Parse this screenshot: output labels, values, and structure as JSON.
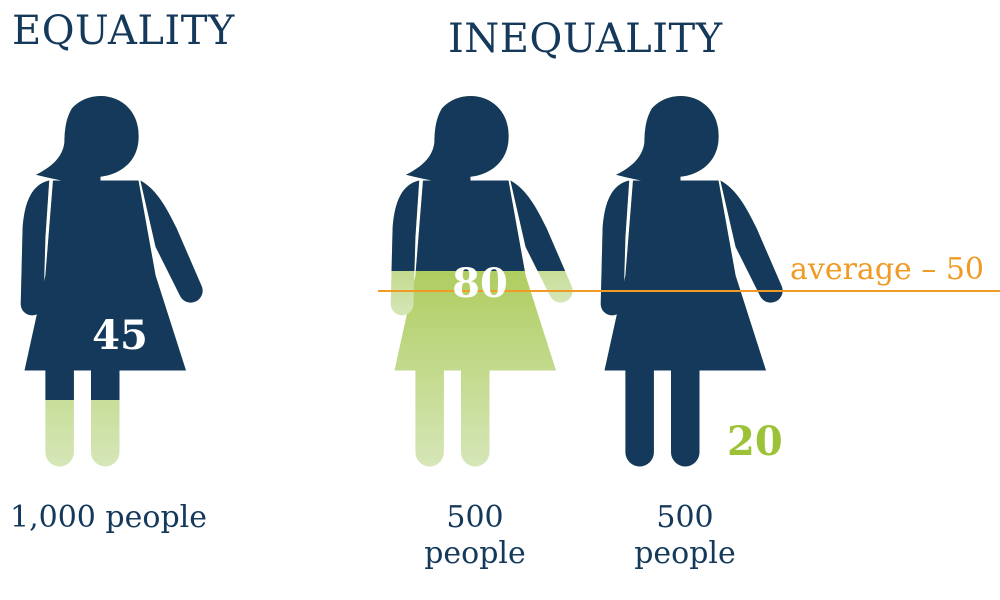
{
  "headings": {
    "equality": "EQUALITY",
    "inequality": "INEQUALITY"
  },
  "figures": [
    {
      "value": "45",
      "fill_level": 0.45,
      "caption_line1": "1,000 people",
      "caption_line2": ""
    },
    {
      "value": "80",
      "fill_level": 0.8,
      "caption_line1": "500",
      "caption_line2": "people"
    },
    {
      "value": "20",
      "fill_level": 0.2,
      "caption_line1": "500",
      "caption_line2": "people"
    }
  ],
  "average": {
    "label": "average – 50",
    "value": 50
  },
  "colors": {
    "dark": "#14395b",
    "green": "#9cc237",
    "green_light": "#d4e4b4",
    "average_line": "#ef9b26"
  }
}
